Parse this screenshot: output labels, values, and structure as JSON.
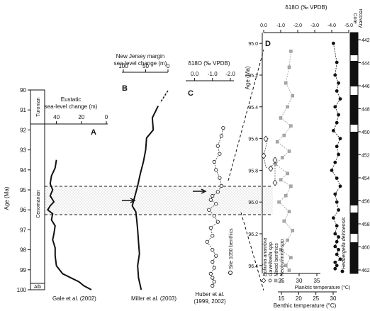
{
  "panels": {
    "A": {
      "letter": "A",
      "axis_title_1": "Eustatic",
      "axis_title_2": "sea-level change (m)",
      "ticks": [
        "40",
        "20",
        "0"
      ],
      "source": "Gale et al. (2002)"
    },
    "B": {
      "letter": "B",
      "axis_title_1": "New Jersey margin",
      "axis_title_2": "sea-level change (m)",
      "ticks": [
        "100",
        "50",
        "0"
      ],
      "source": "Miller et al. (2003)"
    },
    "C": {
      "letter": "C",
      "axis_title": "δ18O (‰ VPDB)",
      "ticks": [
        "0.0",
        "-1.0",
        "-2.0"
      ],
      "series_label": "Site 1050 benthics",
      "source_1": "Huber et al.",
      "source_2": "(1999, 2002)"
    },
    "D": {
      "letter": "D",
      "top_axis_title": "δ18O (‰ VPDB)",
      "top_ticks": [
        "0.0",
        "-1.0",
        "-2.0",
        "-3.0",
        "-4.0",
        "-5.0"
      ],
      "core_recovery_1": "Core",
      "core_recovery_2": "recovery",
      "age_axis_title": "Age (Ma)",
      "age_ticks": [
        "95.0",
        "95.2",
        "95.4",
        "95.6",
        "95.8",
        "96.0",
        "96.2",
        "96.4"
      ],
      "depth_ticks": [
        "442",
        "444",
        "446",
        "448",
        "450",
        "452",
        "454",
        "456",
        "458",
        "460",
        "462"
      ],
      "planktic_axis_title": "Planktic temperature (°C)",
      "planktic_ticks": [
        "25",
        "30",
        "35"
      ],
      "benthic_axis_title": "Benthic temperature (°C)",
      "benthic_ticks": [
        "15",
        "20",
        "25",
        "30"
      ],
      "legend": [
        "Bolivina anambra",
        "Gavelinella spp.",
        "Mixed benthics",
        "Neobulimina spp."
      ],
      "planktic_label": "Hedbergella delrioensis"
    }
  },
  "left_axis": {
    "title": "Age (Ma)",
    "ticks": [
      "90",
      "91",
      "92",
      "93",
      "94",
      "95",
      "96",
      "97",
      "98",
      "99",
      "100"
    ],
    "stages": [
      "Turonian",
      "Cenomanian",
      "Alb"
    ]
  },
  "chart_data": [
    {
      "type": "line",
      "panel": "A",
      "xlabel": "Eustatic sea-level change (m)",
      "ylabel": "Age (Ma)",
      "xlim": [
        50,
        0
      ],
      "ylim": [
        100,
        90
      ],
      "x": [
        40,
        41,
        44,
        45,
        43,
        45,
        42,
        45,
        47,
        43,
        44,
        41,
        42,
        43,
        41,
        41,
        40,
        35,
        22,
        18,
        12
      ],
      "y": [
        93.5,
        93.9,
        94.3,
        94.7,
        95.0,
        95.3,
        95.6,
        95.8,
        96.0,
        96.2,
        96.5,
        96.8,
        97.2,
        97.5,
        97.9,
        98.3,
        98.8,
        99.2,
        99.6,
        99.8,
        100.0
      ]
    },
    {
      "type": "line",
      "panel": "B",
      "xlabel": "New Jersey margin sea-level change (m)",
      "ylabel": "Age (Ma)",
      "xlim": [
        100,
        0
      ],
      "ylim": [
        100,
        90
      ],
      "x": [
        22,
        35,
        33,
        48,
        50,
        55,
        62,
        68,
        80,
        72,
        70,
        68,
        66,
        64,
        68,
        66,
        60
      ],
      "y": [
        90.8,
        91.4,
        92.0,
        92.4,
        93.0,
        93.6,
        94.2,
        94.8,
        95.8,
        96.1,
        96.5,
        97.0,
        97.6,
        98.2,
        98.8,
        99.4,
        100.0
      ]
    },
    {
      "type": "scatter",
      "panel": "C",
      "xlabel": "δ18O (‰ VPDB)",
      "ylabel": "Age (Ma)",
      "series": [
        {
          "name": "Site 1050 benthics"
        }
      ],
      "xlim": [
        0.5,
        -2.2
      ],
      "ylim": [
        100,
        90
      ],
      "x": [
        -1.6,
        -1.5,
        -1.3,
        -1.4,
        -1.1,
        -1.2,
        -1.4,
        -1.5,
        -1.3,
        -1.0,
        -0.9,
        -1.2,
        -0.8,
        -1.1,
        -1.3,
        -0.9,
        -1.0,
        -0.7,
        -1.0,
        -1.2,
        -1.0,
        -1.1,
        -0.9,
        -1.0,
        -1.1,
        -1.0
      ],
      "y": [
        91.9,
        92.3,
        92.8,
        93.2,
        93.6,
        94.0,
        94.4,
        94.8,
        95.1,
        95.3,
        95.5,
        95.7,
        96.0,
        96.3,
        96.6,
        96.9,
        97.3,
        97.6,
        98.0,
        98.3,
        98.6,
        98.9,
        99.2,
        99.4,
        99.6,
        99.8
      ]
    },
    {
      "type": "scatter",
      "panel": "D",
      "xlabel": "δ18O (‰ VPDB)",
      "ylabel": "Age (Ma)",
      "xlim": [
        0.0,
        -5.0
      ],
      "ylim": [
        96.45,
        94.95
      ],
      "series": [
        {
          "name": "Hedbergella delrioensis",
          "x": [
            -4.1,
            -4.3,
            -4.2,
            -4.4,
            -4.3,
            -4.5,
            -4.2,
            -4.4,
            -4.3,
            -4.1,
            -4.5,
            -4.3,
            -4.4,
            -4.2,
            -4.0,
            -4.3,
            -4.5,
            -4.2,
            -4.3,
            -4.4,
            -4.1,
            -4.3,
            -4.2,
            -4.4,
            -4.3,
            -4.2,
            -4.4,
            -4.3,
            -4.5,
            -4.2,
            -4.3,
            -4.2
          ],
          "y": [
            95.0,
            95.12,
            95.2,
            95.25,
            95.3,
            95.35,
            95.4,
            95.45,
            95.5,
            95.55,
            95.6,
            95.65,
            95.7,
            95.75,
            95.8,
            95.85,
            95.9,
            95.95,
            96.0,
            96.05,
            96.1,
            96.15,
            96.2,
            96.22,
            96.25,
            96.28,
            96.3,
            96.33,
            96.36,
            96.38,
            96.4,
            96.42
          ]
        },
        {
          "name": "Mixed benthics",
          "x": [
            -1.6,
            -1.5,
            -1.3,
            -1.7,
            -1.4,
            -1.0,
            -1.6,
            -1.2,
            -0.8,
            -1.5,
            -1.1,
            -0.7,
            -1.4,
            -1.0,
            -1.6,
            -1.3,
            -0.9,
            -1.5,
            -1.2,
            -1.7,
            -1.4,
            -1.0,
            -1.6,
            -1.3,
            -1.5
          ],
          "y": [
            95.05,
            95.15,
            95.25,
            95.33,
            95.4,
            95.47,
            95.52,
            95.58,
            95.62,
            95.68,
            95.72,
            95.76,
            95.82,
            95.86,
            95.9,
            95.96,
            96.0,
            96.06,
            96.12,
            96.18,
            96.24,
            96.3,
            96.35,
            96.4,
            96.43
          ]
        }
      ]
    }
  ]
}
